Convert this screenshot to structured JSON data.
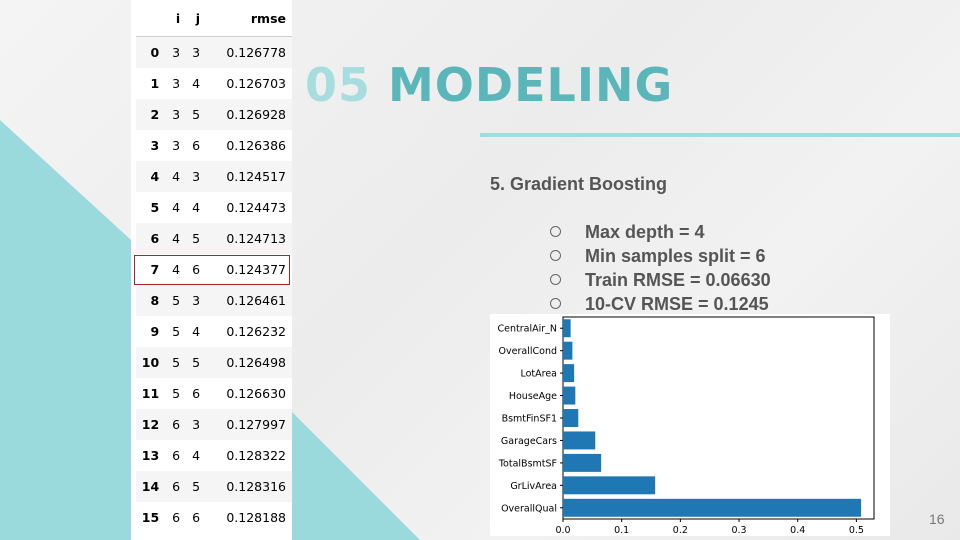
{
  "slide": {
    "title_number": "05",
    "title_word": "MODELING",
    "subtitle": "5. Gradient Boosting",
    "bullets": [
      "Max depth = 4",
      "Min samples split = 6",
      "Train RMSE = 0.06630",
      "10-CV RMSE = 0.1245"
    ],
    "page_number": "16",
    "accent_color": "#5bb6ba",
    "accent_light": "#a8dde0"
  },
  "table": {
    "headers": [
      "",
      "i",
      "j",
      "rmse"
    ],
    "rows": [
      [
        "0",
        "3",
        "3",
        "0.126778"
      ],
      [
        "1",
        "3",
        "4",
        "0.126703"
      ],
      [
        "2",
        "3",
        "5",
        "0.126928"
      ],
      [
        "3",
        "3",
        "6",
        "0.126386"
      ],
      [
        "4",
        "4",
        "3",
        "0.124517"
      ],
      [
        "5",
        "4",
        "4",
        "0.124473"
      ],
      [
        "6",
        "4",
        "5",
        "0.124713"
      ],
      [
        "7",
        "4",
        "6",
        "0.124377"
      ],
      [
        "8",
        "5",
        "3",
        "0.126461"
      ],
      [
        "9",
        "5",
        "4",
        "0.126232"
      ],
      [
        "10",
        "5",
        "5",
        "0.126498"
      ],
      [
        "11",
        "5",
        "6",
        "0.126630"
      ],
      [
        "12",
        "6",
        "3",
        "0.127997"
      ],
      [
        "13",
        "6",
        "4",
        "0.128322"
      ],
      [
        "14",
        "6",
        "5",
        "0.128316"
      ],
      [
        "15",
        "6",
        "6",
        "0.128188"
      ]
    ],
    "highlighted_row": 7
  },
  "chart_data": {
    "type": "bar",
    "orientation": "horizontal",
    "categories": [
      "OverallQual",
      "GrLivArea",
      "TotalBsmtSF",
      "GarageCars",
      "BsmtFinSF1",
      "HouseAge",
      "LotArea",
      "OverallCond",
      "CentralAir_N"
    ],
    "values": [
      0.508,
      0.157,
      0.065,
      0.055,
      0.026,
      0.021,
      0.019,
      0.016,
      0.013
    ],
    "xlim": [
      0,
      0.53
    ],
    "xticks": [
      "0.0",
      "0.1",
      "0.2",
      "0.3",
      "0.4",
      "0.5"
    ],
    "bar_color": "#1f77b4",
    "grid": false
  }
}
